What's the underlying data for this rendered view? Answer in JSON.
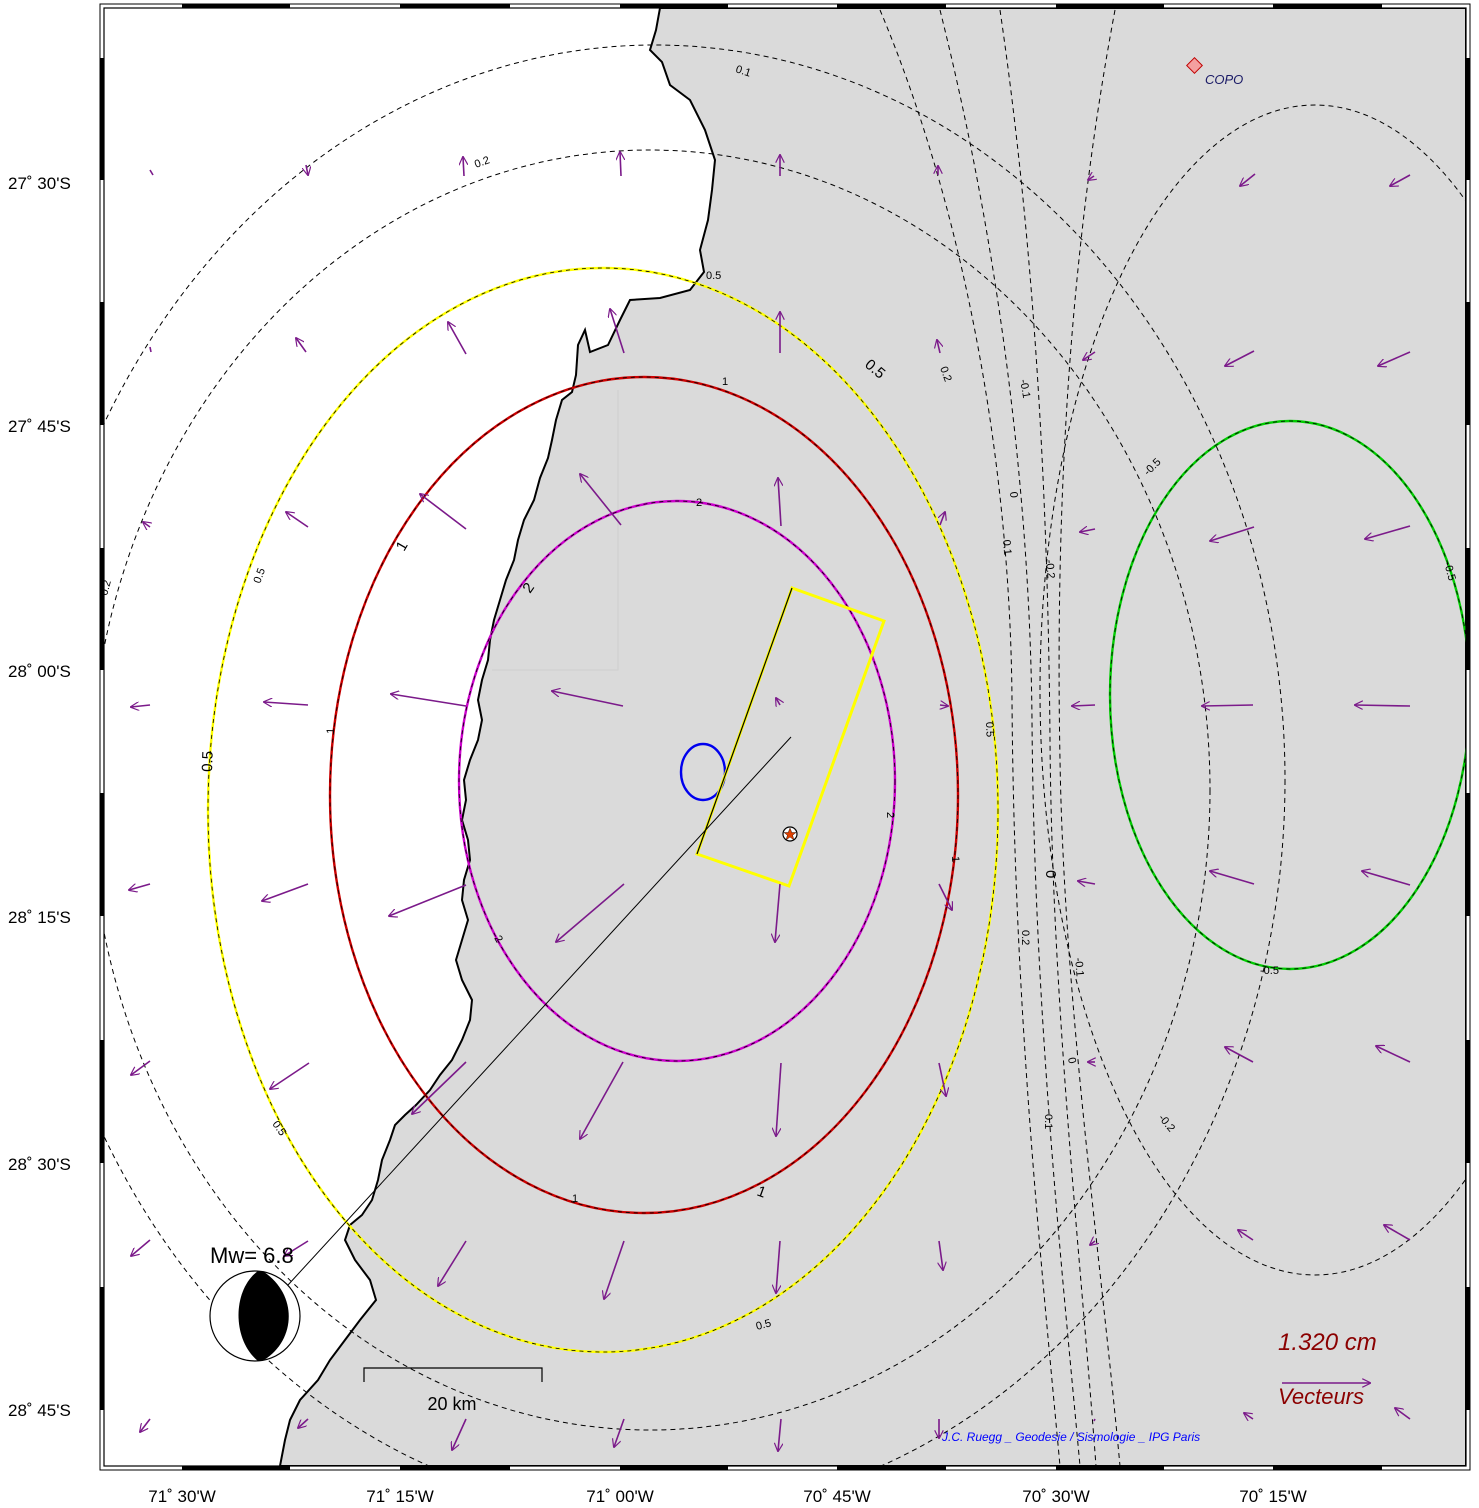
{
  "map": {
    "lat_ticks": [
      "27˚ 30'S",
      "27˚ 45'S",
      "28˚ 00'S",
      "28˚ 15'S",
      "28˚ 30'S",
      "28˚ 45'S"
    ],
    "lon_ticks": [
      "71˚ 30'W",
      "71˚ 15'W",
      "71˚ 00'W",
      "70˚ 45'W",
      "70˚ 30'W",
      "70˚ 15'W"
    ],
    "lon_range": [
      "71˚ 35'W",
      "70˚ 05'W"
    ],
    "lat_range": [
      "27˚ 20'S",
      "28˚ 50'S"
    ],
    "station": "COPO",
    "magnitude_label": "Mw= 6.8",
    "scale_bar_label": "20 km",
    "vector_scale_value": "1.320  cm",
    "vector_scale_label": "Vecteurs",
    "credit": "J.C. Ruegg _ Geodesie / Sismologie _ IPG Paris",
    "colors": {
      "land": "#dadada",
      "sea": "#ffffff",
      "arrows": "#7b1a8a",
      "contour_2": "#cc00cc",
      "contour_1": "#cc0000",
      "contour_0_5": "#ffff00",
      "contour_neg_0_5": "#00cc00",
      "contour_blue": "#0000ee",
      "fault_plane": "#ffff00",
      "scale_text": "#8b0000",
      "credit_text": "#0000ff"
    },
    "contour_labels": {
      "v0_1": "0.1",
      "v0_2": "0.2",
      "v0_5": "0.5",
      "v1": "1",
      "v2": "2",
      "v0": "0",
      "vn0_1": "-0.1",
      "vn0_2": "-0.2",
      "vn0_5": "-0.5"
    }
  }
}
